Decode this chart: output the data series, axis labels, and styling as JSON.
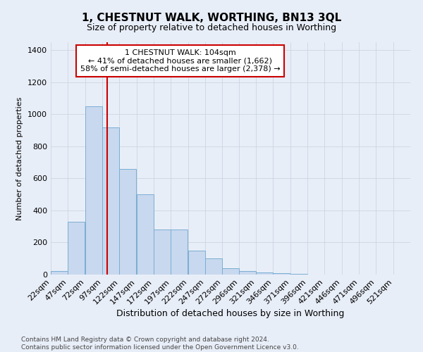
{
  "title": "1, CHESTNUT WALK, WORTHING, BN13 3QL",
  "subtitle": "Size of property relative to detached houses in Worthing",
  "xlabel": "Distribution of detached houses by size in Worthing",
  "ylabel": "Number of detached properties",
  "footnote": "Contains HM Land Registry data © Crown copyright and database right 2024.\nContains public sector information licensed under the Open Government Licence v3.0.",
  "bin_labels": [
    "22sqm",
    "47sqm",
    "72sqm",
    "97sqm",
    "122sqm",
    "147sqm",
    "172sqm",
    "197sqm",
    "222sqm",
    "247sqm",
    "272sqm",
    "296sqm",
    "321sqm",
    "346sqm",
    "371sqm",
    "396sqm",
    "421sqm",
    "446sqm",
    "471sqm",
    "496sqm",
    "521sqm"
  ],
  "bar_values": [
    20,
    330,
    1050,
    920,
    660,
    500,
    280,
    280,
    150,
    100,
    40,
    20,
    15,
    10,
    3,
    1,
    1,
    1,
    1,
    1,
    1
  ],
  "bar_color": "#c8d8ee",
  "bar_edge_color": "#7aaed4",
  "bin_starts": [
    22,
    47,
    72,
    97,
    122,
    147,
    172,
    197,
    222,
    247,
    272,
    296,
    321,
    346,
    371,
    396,
    421,
    446,
    471,
    496,
    521
  ],
  "bin_width": 25,
  "property_size": 104,
  "property_label": "1 CHESTNUT WALK: 104sqm",
  "annotation_line1": "← 41% of detached houses are smaller (1,662)",
  "annotation_line2": "58% of semi-detached houses are larger (2,378) →",
  "annotation_box_color": "#ffffff",
  "annotation_box_edge": "#cc0000",
  "vline_color": "#cc0000",
  "grid_color": "#c8d0dc",
  "background_color": "#e8eef8",
  "ylim": [
    0,
    1450
  ],
  "title_fontsize": 11,
  "subtitle_fontsize": 9,
  "ylabel_fontsize": 8,
  "xlabel_fontsize": 9,
  "tick_fontsize": 8,
  "footnote_fontsize": 6.5
}
